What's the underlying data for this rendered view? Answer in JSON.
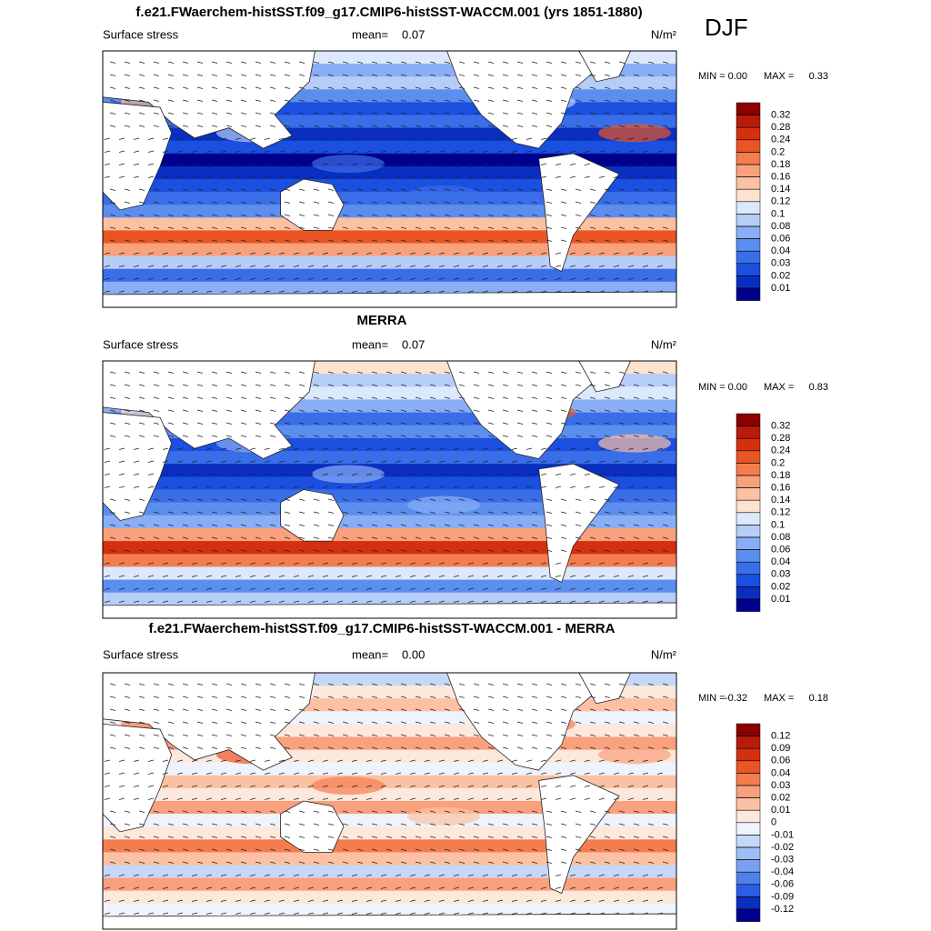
{
  "season": "DJF",
  "chart_data": [
    {
      "type": "map",
      "title": "f.e21.FWaerchem-histSST.f09_g17.CMIP6-histSST-WACCM.001 (yrs 1851-1880)",
      "left_label": "Surface stress",
      "mean_label": "mean=",
      "mean": 0.07,
      "units": "N/m²",
      "min_label": "MIN =",
      "min": {
        "value": 0,
        "label": "0.00"
      },
      "max_label": "MAX =",
      "max": 0.33,
      "levels": [
        0.32,
        0.28,
        0.24,
        0.2,
        0.18,
        0.16,
        0.14,
        0.12,
        0.1,
        0.08,
        0.06,
        0.04,
        0.03,
        0.02,
        0.01
      ],
      "colors": [
        "#8c0000",
        "#b81b0a",
        "#d4300f",
        "#ea5525",
        "#f47d50",
        "#f9a07c",
        "#fcc0a2",
        "#fde2d0",
        "#dce8fb",
        "#b6cdf8",
        "#8aaef5",
        "#5c8ef0",
        "#3a6ee8",
        "#1a4fe0",
        "#0a2fc0",
        "#00008f"
      ]
    },
    {
      "type": "map",
      "title": "MERRA",
      "left_label": "Surface stress",
      "mean_label": "mean=",
      "mean": 0.07,
      "units": "N/m²",
      "min_label": "MIN =",
      "min": {
        "value": 0,
        "label": "0.00"
      },
      "max_label": "MAX =",
      "max": 0.83,
      "levels": [
        0.32,
        0.28,
        0.24,
        0.2,
        0.18,
        0.16,
        0.14,
        0.12,
        0.1,
        0.08,
        0.06,
        0.04,
        0.03,
        0.02,
        0.01
      ],
      "colors": [
        "#8c0000",
        "#b81b0a",
        "#d4300f",
        "#ea5525",
        "#f47d50",
        "#f9a07c",
        "#fcc0a2",
        "#fde2d0",
        "#dce8fb",
        "#b6cdf8",
        "#8aaef5",
        "#5c8ef0",
        "#3a6ee8",
        "#1a4fe0",
        "#0a2fc0",
        "#00008f"
      ]
    },
    {
      "type": "map",
      "title": "f.e21.FWaerchem-histSST.f09_g17.CMIP6-histSST-WACCM.001 - MERRA",
      "left_label": "Surface stress",
      "mean_label": "mean=",
      "mean": {
        "value": 0,
        "label": "0.00"
      },
      "units": "N/m²",
      "min_label": "MIN =",
      "min": -0.32,
      "max_label": "MAX =",
      "max": 0.18,
      "levels": [
        0.12,
        0.09,
        0.06,
        0.04,
        0.03,
        0.02,
        0.01,
        0,
        -0.01,
        -0.02,
        -0.03,
        -0.04,
        -0.06,
        -0.09,
        -0.12
      ],
      "colors": [
        "#8c0000",
        "#b81b0a",
        "#d4300f",
        "#ea5525",
        "#f47d50",
        "#f9a07c",
        "#fcc0a2",
        "#fde8dc",
        "#eef3fd",
        "#c6d8f9",
        "#a0bef6",
        "#7aa0f2",
        "#4f80ec",
        "#2a5ee4",
        "#0a2fc0",
        "#00008f"
      ]
    }
  ]
}
